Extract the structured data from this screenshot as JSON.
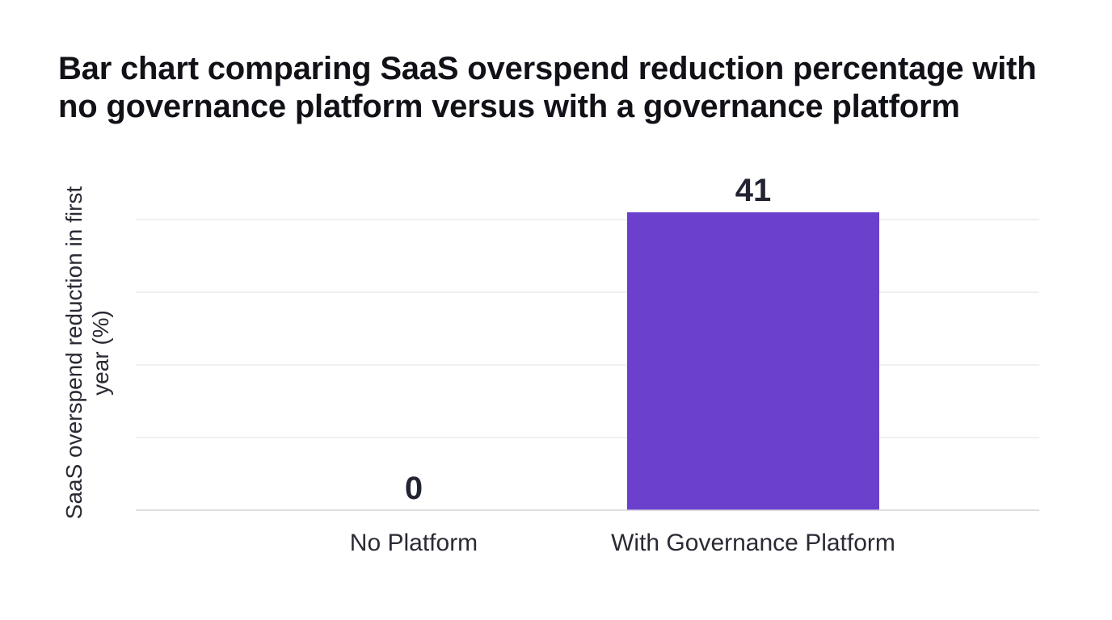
{
  "chart_data": {
    "type": "bar",
    "title": "Bar chart comparing SaaS overspend reduction percentage with no governance platform versus with a governance platform",
    "xlabel": "",
    "ylabel": "SaaS overspend reduction in first year (%)",
    "categories": [
      "No Platform",
      "With Governance Platform"
    ],
    "values": [
      0,
      41
    ],
    "data_labels": [
      "0",
      "41"
    ],
    "ylim": [
      0,
      45
    ],
    "grid": true,
    "legend": "none",
    "bar_color": "#6b40cc",
    "label_color": "#222433",
    "grid_color": "#e6e6ea",
    "axis_color": "#d4d4da"
  }
}
